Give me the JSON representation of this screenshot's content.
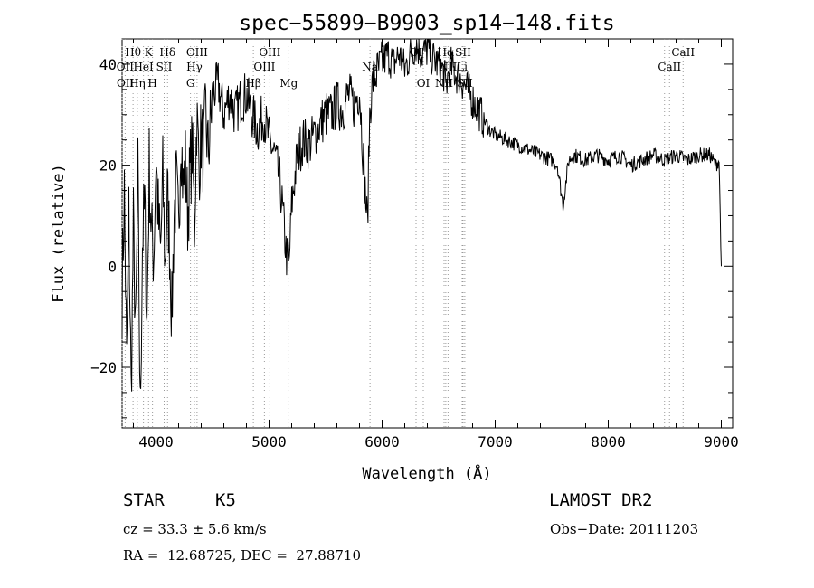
{
  "chart_data": {
    "type": "line",
    "title": "spec−55899−B9903_sp14−148.fits",
    "xlabel": "Wavelength (Å)",
    "ylabel": "Flux (relative)",
    "xlim": [
      3700,
      9100
    ],
    "ylim": [
      -32,
      45
    ],
    "xticks": [
      4000,
      5000,
      6000,
      7000,
      8000,
      9000
    ],
    "yticks": [
      -20,
      0,
      20,
      40
    ],
    "ytick_labels": [
      "−20",
      "0",
      "20",
      "40"
    ],
    "grid": false,
    "series": [
      {
        "x": [
          3700,
          3720,
          3740,
          3760,
          3780,
          3800,
          3820,
          3840,
          3860,
          3880,
          3900,
          3920,
          3940,
          3960,
          3980,
          4000,
          4020,
          4040,
          4060,
          4080,
          4100,
          4120,
          4140,
          4160,
          4180,
          4200,
          4220,
          4240,
          4260,
          4280,
          4300,
          4320,
          4340,
          4360,
          4380,
          4400,
          4420,
          4440,
          4460,
          4480,
          4500,
          4550,
          4600,
          4650,
          4700,
          4750,
          4800,
          4850,
          4900,
          4950,
          5000,
          5050,
          5100,
          5150,
          5175,
          5200,
          5250,
          5300,
          5350,
          5400,
          5450,
          5500,
          5550,
          5600,
          5650,
          5700,
          5750,
          5800,
          5850,
          5870,
          5890,
          5900,
          5920,
          5950,
          6000,
          6050,
          6100,
          6150,
          6200,
          6250,
          6300,
          6350,
          6400,
          6450,
          6500,
          6550,
          6563,
          6600,
          6650,
          6700,
          6750,
          6800,
          6850,
          6900,
          6950,
          7000,
          7100,
          7200,
          7300,
          7400,
          7500,
          7550,
          7600,
          7650,
          7700,
          7800,
          7900,
          8000,
          8100,
          8200,
          8300,
          8400,
          8500,
          8600,
          8700,
          8800,
          8900,
          8950,
          8980,
          9000
        ],
        "values": [
          -5,
          15,
          -20,
          10,
          -25,
          8,
          -15,
          18,
          -30,
          5,
          12,
          -12,
          20,
          6,
          2,
          22,
          10,
          2,
          18,
          0,
          14,
          5,
          -10,
          10,
          16,
          6,
          28,
          15,
          20,
          10,
          18,
          24,
          8,
          30,
          20,
          26,
          22,
          30,
          22,
          28,
          34,
          36,
          30,
          34,
          30,
          33,
          34,
          30,
          27,
          30,
          25,
          22,
          16,
          3,
          -1,
          12,
          22,
          25,
          24,
          26,
          28,
          30,
          30,
          32,
          31,
          34,
          32,
          35,
          15,
          8,
          30,
          33,
          37,
          38,
          40,
          42,
          40,
          42,
          39,
          42,
          44,
          42,
          43,
          41,
          40,
          38,
          35,
          40,
          38,
          37,
          35,
          33,
          31,
          29,
          27,
          26,
          25,
          24,
          23,
          22,
          21,
          20,
          12,
          21,
          22,
          21,
          22,
          21,
          22,
          20,
          21,
          22,
          21,
          22,
          21,
          22,
          22,
          20,
          21,
          0
        ]
      }
    ],
    "line_ids": [
      {
        "label": "Hθ",
        "x": 3797
      },
      {
        "label": "K",
        "x": 3934
      },
      {
        "label": "Hδ",
        "x": 4102
      },
      {
        "label": "OIII",
        "x": 4363
      },
      {
        "label": "OIII",
        "x": 5007
      },
      {
        "label": "SII",
        "x": 6716
      },
      {
        "label": "Hα",
        "x": 6563
      },
      {
        "label": "OI",
        "x": 6300
      },
      {
        "label": "CaII",
        "x": 8662
      },
      {
        "label": "OII",
        "x": 3727
      },
      {
        "label": "HeI",
        "x": 3889
      },
      {
        "label": "SII",
        "x": 4072
      },
      {
        "label": "Hγ",
        "x": 4340
      },
      {
        "label": "OIII",
        "x": 4959
      },
      {
        "label": "Na",
        "x": 5893
      },
      {
        "label": "NII",
        "x": 6583
      },
      {
        "label": "Li",
        "x": 6708
      },
      {
        "label": "CaII",
        "x": 8542
      },
      {
        "label": "OII",
        "x": 3729
      },
      {
        "label": "Hη",
        "x": 3835
      },
      {
        "label": "H",
        "x": 3969
      },
      {
        "label": "G",
        "x": 4305
      },
      {
        "label": "Hβ",
        "x": 4861
      },
      {
        "label": "Mg",
        "x": 5175
      },
      {
        "label": "OI",
        "x": 6364
      },
      {
        "label": "NII",
        "x": 6548
      },
      {
        "label": "SII",
        "x": 6731
      }
    ],
    "extra_lines_x": [
      3700,
      3727,
      3797,
      3835,
      3889,
      3934,
      3969,
      4072,
      4102,
      4305,
      4340,
      4363,
      4861,
      4959,
      5007,
      5175,
      5893,
      6300,
      6364,
      6548,
      6563,
      6583,
      6708,
      6716,
      6731,
      8498,
      8542,
      8662
    ]
  },
  "info": {
    "object_class": "STAR",
    "subclass": "K5",
    "survey": "LAMOST DR2",
    "cz": "cz = 33.3 ± 5.6 km/s",
    "obs_date": "Obs−Date: 20111203",
    "radec": "RA =  12.68725, DEC =  27.88710"
  }
}
